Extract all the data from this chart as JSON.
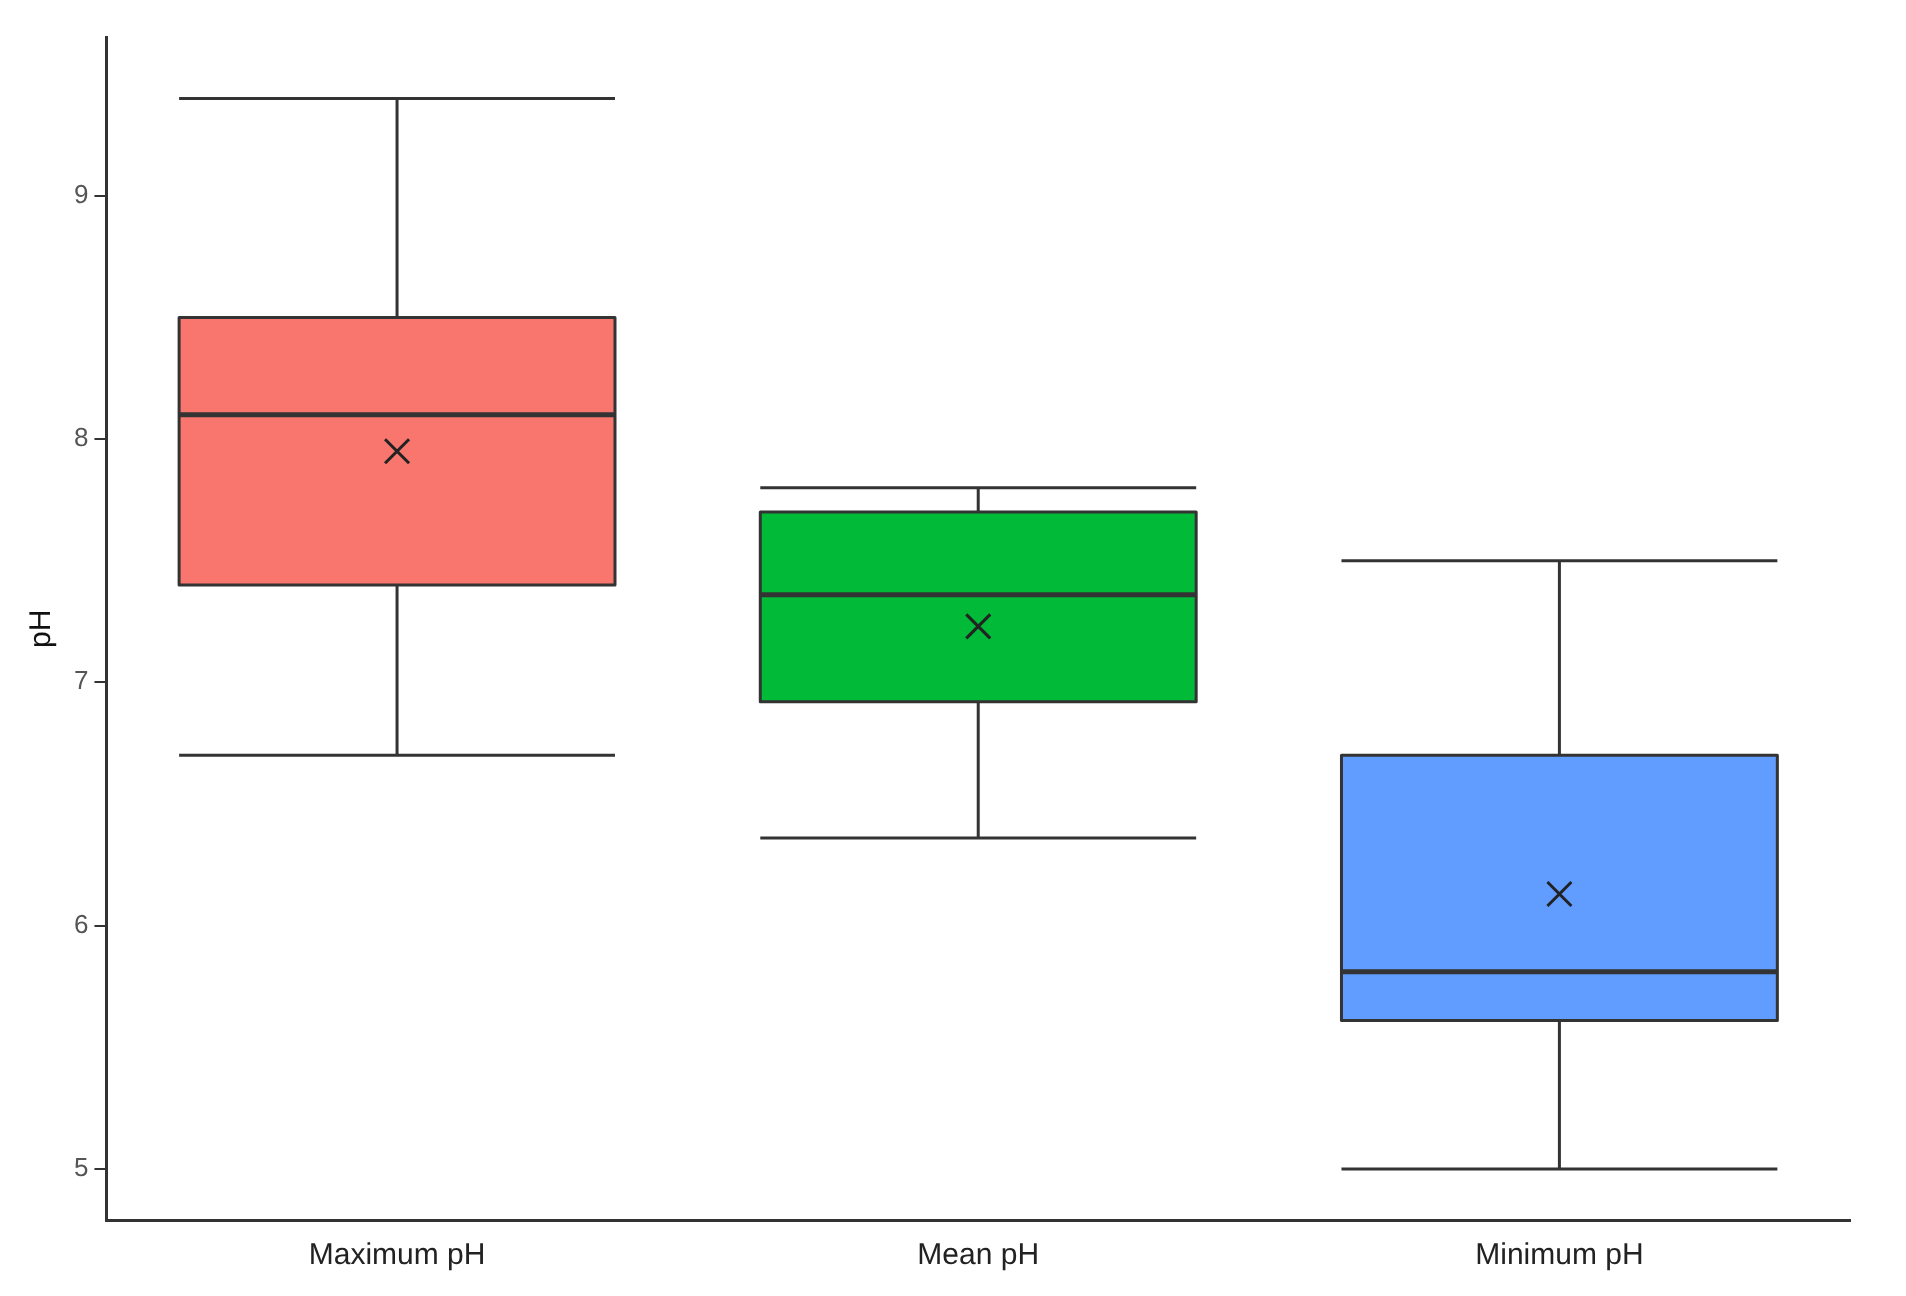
{
  "chart_data": {
    "type": "box",
    "ylabel": "pH",
    "categories": [
      "Maximum pH",
      "Mean pH",
      "Minimum pH"
    ],
    "colors": [
      "#f8766d",
      "#00ba38",
      "#619cff"
    ],
    "boxes": [
      {
        "low": 6.7,
        "q1": 7.4,
        "median": 8.1,
        "q3": 8.5,
        "high": 9.4,
        "mean": 7.95
      },
      {
        "low": 6.36,
        "q1": 6.92,
        "median": 7.36,
        "q3": 7.7,
        "high": 7.8,
        "mean": 7.23
      },
      {
        "low": 5.0,
        "q1": 5.61,
        "median": 5.81,
        "q3": 6.7,
        "high": 7.5,
        "mean": 6.13
      }
    ],
    "marker": "cross",
    "ylim": [
      4.79,
      9.65
    ],
    "yticks": [
      5,
      6,
      7,
      8,
      9
    ],
    "grid": false,
    "legend": false
  }
}
